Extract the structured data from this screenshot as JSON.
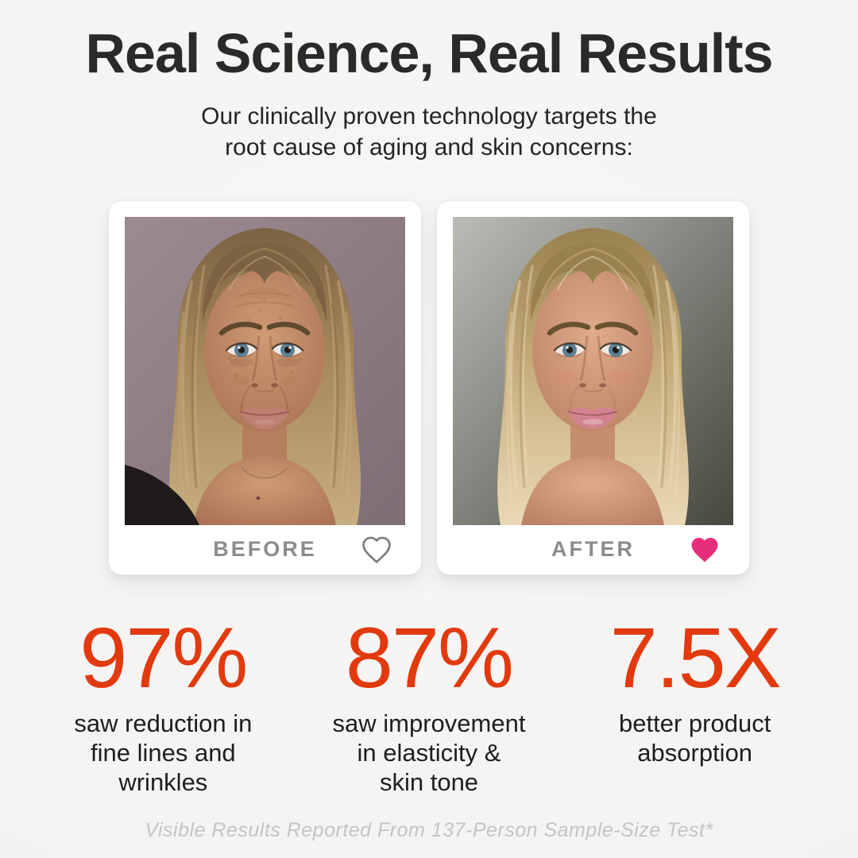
{
  "header": {
    "title": "Real Science, Real Results",
    "subtitle_lines": [
      "Our clinically proven technology targets the",
      "root cause of aging and skin concerns:"
    ]
  },
  "comparison": {
    "before": {
      "label": "BEFORE",
      "liked": false,
      "heart_icon": "heart-outline"
    },
    "after": {
      "label": "AFTER",
      "liked": true,
      "heart_icon": "heart-filled"
    }
  },
  "stats": [
    {
      "value": "97%",
      "lines": [
        "saw reduction in",
        "fine lines and",
        "wrinkles"
      ]
    },
    {
      "value": "87%",
      "lines": [
        "saw improvement",
        "in elasticity &",
        "skin tone"
      ]
    },
    {
      "value": "7.5X",
      "lines": [
        "better product",
        "absorption"
      ]
    }
  ],
  "footnote": "Visible Results Reported From 137-Person Sample-Size Test*",
  "colors": {
    "accent": "#e23a0e",
    "heart_pink": "#e72e7a",
    "heart_outline": "#7b7b7b",
    "label_gray": "#8c8c8c",
    "background": "#f5f4f2"
  },
  "portraits": {
    "before": {
      "background_top": "#9c8b92",
      "background_bottom": "#7f6d76",
      "hair_root": "#7c6243",
      "hair_mid": "#a7895b",
      "hair_tip": "#c7ae7f",
      "skin": "#cf9a74",
      "skin_edge": "#a97354",
      "neck_shadow": "#b57e5c",
      "lip": "#bf7f73",
      "brow": "#5e492e",
      "iris": "#5d7f93",
      "clothing": "#1e1b1a",
      "blemishes": true,
      "glossy_lips": false,
      "necklace": true
    },
    "after": {
      "background_top": "#bcbcb6",
      "background_bottom": "#45483f",
      "hair_root": "#99814f",
      "hair_mid": "#c5ab79",
      "hair_tip": "#ead9b6",
      "skin": "#dfab8b",
      "skin_edge": "#bb8164",
      "neck_shadow": "#c68e6d",
      "lip": "#d2838f",
      "brow": "#695230",
      "iris": "#5d7f93",
      "clothing": null,
      "blemishes": false,
      "glossy_lips": true,
      "necklace": false
    }
  }
}
